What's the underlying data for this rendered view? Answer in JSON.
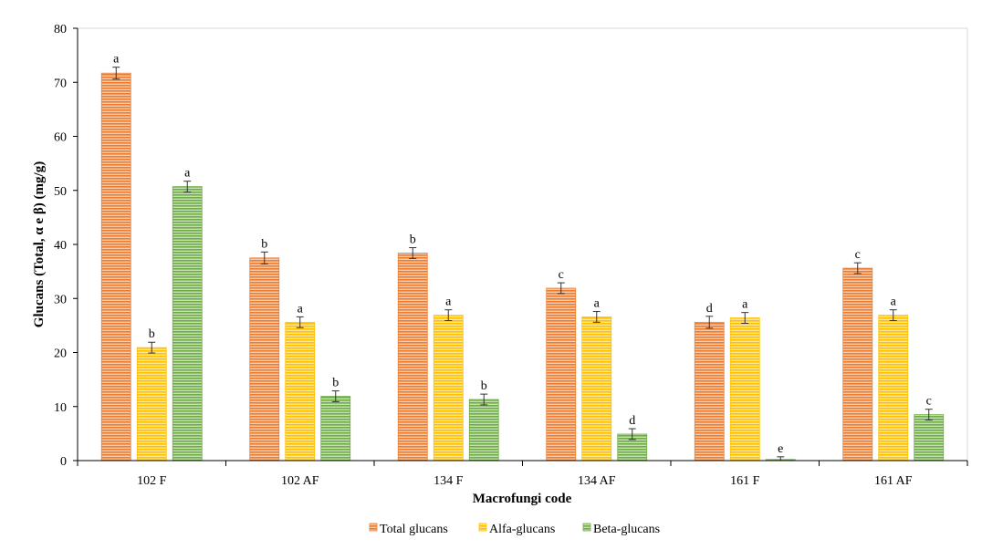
{
  "chart_data": {
    "type": "bar",
    "xlabel": "Macrofungi code",
    "ylabel": "Glucans (Total, α e β) (mg/g)",
    "ylim": [
      0,
      80
    ],
    "yticks": [
      0,
      10,
      20,
      30,
      40,
      50,
      60,
      70,
      80
    ],
    "grid": false,
    "legend_position": "bottom",
    "categories": [
      "102 F",
      "102 AF",
      "134 F",
      "134 AF",
      "161 F",
      "161 AF"
    ],
    "series": [
      {
        "name": "Total glucans",
        "color": "#ED7D31",
        "values": [
          71.7,
          37.5,
          38.4,
          31.9,
          25.6,
          35.6
        ],
        "errors": [
          1.1,
          1.1,
          1.0,
          1.0,
          1.1,
          1.0
        ],
        "letters": [
          "a",
          "b",
          "b",
          "c",
          "d",
          "c"
        ]
      },
      {
        "name": "Alfa-glucans",
        "color": "#FFC000",
        "values": [
          20.9,
          25.6,
          26.9,
          26.6,
          26.4,
          26.9
        ],
        "errors": [
          1.0,
          1.0,
          1.0,
          1.0,
          1.0,
          1.0
        ],
        "letters": [
          "b",
          "a",
          "a",
          "a",
          "a",
          "a"
        ]
      },
      {
        "name": "Beta-glucans",
        "color": "#70AD47",
        "values": [
          50.7,
          11.9,
          11.3,
          4.9,
          0.2,
          8.5
        ],
        "errors": [
          1.0,
          1.0,
          1.0,
          1.0,
          0.5,
          1.0
        ],
        "letters": [
          "a",
          "b",
          "b",
          "d",
          "e",
          "c"
        ]
      }
    ]
  }
}
